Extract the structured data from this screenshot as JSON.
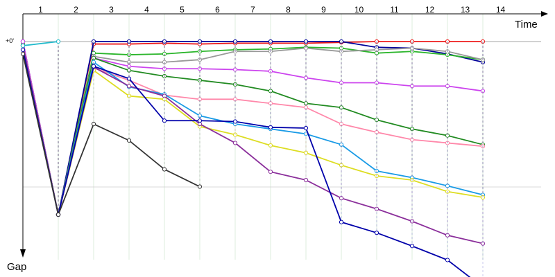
{
  "chart_data": {
    "type": "line",
    "xlabel": "Time",
    "ylabel": "Gap",
    "zero_label": "+0'",
    "categories": [
      "1",
      "2",
      "3",
      "4",
      "5",
      "6",
      "7",
      "8",
      "9",
      "10",
      "11",
      "12",
      "13",
      "14"
    ],
    "ylim": [
      0,
      300
    ],
    "grid": true,
    "series": [
      {
        "color": "#ee1c1c",
        "values": [
          0,
          210,
          3,
          3,
          2,
          3,
          2,
          2,
          2,
          1,
          0,
          0,
          0,
          0
        ]
      },
      {
        "color": "#000099",
        "values": [
          0,
          210,
          0,
          0,
          0,
          0,
          0,
          0,
          0,
          0,
          7,
          8,
          15,
          25
        ]
      },
      {
        "color": "#2bb52b",
        "values": [
          3,
          210,
          14,
          16,
          15,
          12,
          10,
          9,
          7,
          8,
          14,
          12,
          16,
          22
        ]
      },
      {
        "color": "#999999",
        "values": [
          0,
          210,
          18,
          25,
          25,
          22,
          12,
          12,
          8,
          12,
          10,
          8,
          12,
          22
        ]
      },
      {
        "color": "#cc44ee",
        "values": [
          0,
          210,
          20,
          30,
          33,
          33,
          34,
          36,
          44,
          50,
          50,
          54,
          54,
          60
        ]
      },
      {
        "color": "#228b22",
        "values": [
          5,
          210,
          20,
          35,
          42,
          47,
          52,
          60,
          75,
          80,
          95,
          106,
          114,
          125
        ]
      },
      {
        "color": "#ff88aa",
        "values": [
          5,
          210,
          32,
          47,
          65,
          70,
          70,
          75,
          80,
          100,
          110,
          119,
          123,
          127
        ]
      },
      {
        "color": "#1a9be6",
        "values": [
          5,
          210,
          25,
          55,
          64,
          90,
          100,
          106,
          112,
          125,
          157,
          165,
          175,
          186
        ]
      },
      {
        "color": "#dddd22",
        "values": [
          5,
          210,
          35,
          66,
          70,
          103,
          113,
          126,
          135,
          150,
          163,
          168,
          182,
          189
        ]
      },
      {
        "color": "#8b2f9b",
        "values": [
          5,
          210,
          31,
          54,
          66,
          100,
          123,
          158,
          168,
          190,
          203,
          218,
          235,
          245
        ]
      },
      {
        "color": "#0000aa",
        "values": [
          10,
          210,
          30,
          45,
          96,
          96,
          97,
          104,
          105,
          219,
          232,
          248,
          265,
          298
        ]
      },
      {
        "color": "#333333",
        "values": [
          15,
          210,
          100,
          120,
          155,
          176,
          null,
          null,
          null,
          null,
          null,
          null,
          null,
          null
        ]
      },
      {
        "color": "#22bbcc",
        "values": [
          5,
          0,
          null,
          null,
          null,
          null,
          null,
          null,
          null,
          null,
          null,
          null,
          null,
          null
        ]
      }
    ]
  }
}
